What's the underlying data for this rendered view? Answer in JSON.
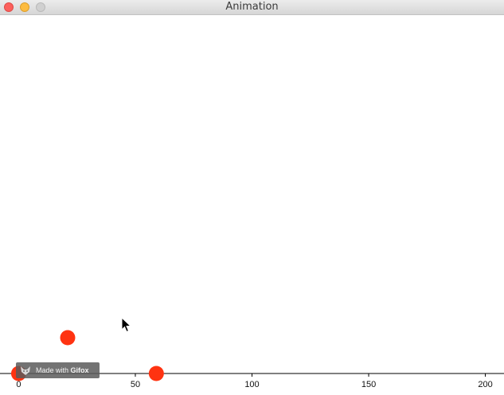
{
  "window": {
    "title": "Animation"
  },
  "watermark": {
    "prefix": "Made with",
    "brand": "Gifox"
  },
  "colors": {
    "ball": "#ff3311",
    "axis": "#000000"
  },
  "chart_data": {
    "type": "scatter",
    "xlim": [
      -8,
      208
    ],
    "ylim": [
      0,
      160
    ],
    "ticks": [
      0,
      50,
      100,
      150,
      200
    ],
    "tick_labels": [
      "0",
      "50",
      "100",
      "150",
      "200"
    ],
    "points": [
      {
        "x": 0,
        "y": 0
      },
      {
        "x": 21,
        "y": 16
      },
      {
        "x": 59,
        "y": 0
      }
    ]
  }
}
